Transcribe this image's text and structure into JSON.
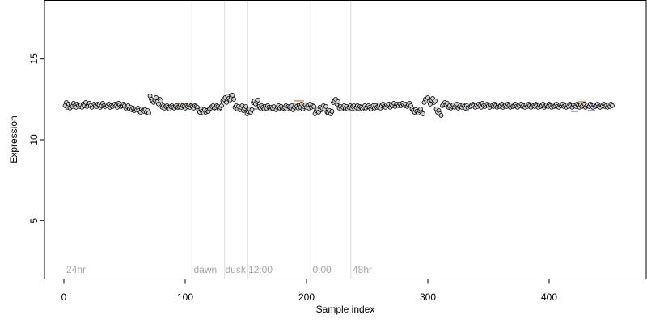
{
  "chart_data": {
    "type": "scatter",
    "title": "",
    "xlabel": "Sample index",
    "ylabel": "Expression",
    "xlim": [
      -16,
      480
    ],
    "ylim": [
      1.4,
      18.6
    ],
    "xticks": [
      0,
      100,
      200,
      300,
      400
    ],
    "yticks": [
      5,
      10,
      15
    ],
    "grid": false,
    "colors": {
      "point_fill": "#cfcfcf",
      "point_stroke": "#000000",
      "trend_below": "#8fa8d8",
      "trend_above": "#e6a66e",
      "separator": "#d9d9d9",
      "region_label": "#a6a6a6"
    },
    "regions": [
      {
        "label": "24hr",
        "x": 2,
        "line_x": null
      },
      {
        "label": "dawn",
        "x": 107,
        "line_x": 105.5
      },
      {
        "label": "dusk",
        "x": 133,
        "line_x": 132.5
      },
      {
        "label": "12:00",
        "x": 152,
        "line_x": 151.5
      },
      {
        "label": "0:00",
        "x": 205,
        "line_x": 203.5
      },
      {
        "label": "48hr",
        "x": 238,
        "line_x": 236.5
      }
    ],
    "series": [
      {
        "points_y": [
          12.1,
          12.3,
          12.0,
          12.2,
          11.95,
          12.15,
          12.05,
          12.25,
          12.1,
          12.0,
          12.2,
          12.1,
          12.05,
          12.15,
          12.0,
          12.2,
          12.1,
          12.3,
          12.05,
          12.15,
          12.25,
          12.1,
          12.0,
          12.15,
          12.2,
          12.1,
          12.05,
          12.2,
          12.15,
          12.0,
          12.1,
          12.25,
          12.1,
          12.05,
          12.15,
          12.1,
          12.2,
          12.0,
          12.1,
          12.05,
          12.15,
          12.2,
          12.1,
          12.0,
          12.25,
          12.15,
          12.05,
          12.1,
          12.2,
          12.1,
          11.95,
          12.05,
          12.1,
          11.9,
          12.0,
          11.85,
          11.95,
          11.8,
          11.9,
          11.85,
          11.95,
          11.8,
          11.7,
          11.9,
          11.8,
          11.75,
          11.85,
          11.7,
          11.8,
          11.65,
          12.7,
          12.5,
          12.4,
          12.3,
          12.45,
          12.6,
          12.35,
          12.2,
          12.5,
          12.4,
          12.0,
          12.1,
          11.95,
          12.05,
          12.1,
          12.0,
          11.9,
          12.05,
          12.1,
          12.0,
          11.95,
          12.05,
          12.1,
          12.0,
          12.05,
          12.15,
          12.0,
          12.1,
          12.05,
          11.95,
          12.1,
          12.05,
          12.15,
          12.0,
          12.1,
          12.05,
          11.95,
          12.1,
          12.05,
          12.0,
          11.8,
          11.7,
          11.9,
          11.75,
          11.65,
          11.85,
          11.7,
          11.8,
          11.75,
          11.9,
          11.95,
          12.05,
          12.1,
          11.95,
          12.0,
          12.1,
          12.05,
          11.9,
          12.0,
          12.1,
          12.4,
          12.5,
          12.6,
          12.3,
          12.7,
          12.55,
          12.45,
          12.65,
          12.75,
          12.5,
          12.0,
          12.1,
          11.9,
          12.05,
          11.85,
          12.0,
          12.1,
          11.8,
          11.95,
          12.05,
          11.6,
          11.75,
          11.9,
          11.7,
          11.85,
          12.3,
          12.4,
          12.2,
          12.35,
          12.45,
          12.05,
          11.95,
          12.1,
          12.0,
          11.9,
          12.05,
          11.95,
          12.1,
          12.0,
          11.9,
          12.0,
          11.95,
          12.05,
          11.9,
          11.85,
          12.0,
          12.1,
          11.95,
          12.05,
          11.9,
          11.95,
          12.0,
          12.1,
          11.9,
          12.05,
          12.0,
          11.95,
          12.1,
          11.85,
          12.0,
          12.15,
          12.05,
          11.95,
          12.1,
          12.0,
          12.2,
          11.9,
          12.05,
          12.15,
          12.0,
          12.1,
          11.95,
          12.2,
          12.0,
          12.1,
          12.05,
          11.6,
          11.8,
          11.9,
          11.7,
          12.0,
          11.85,
          11.95,
          12.1,
          11.9,
          12.05,
          11.7,
          11.65,
          11.8,
          11.6,
          11.75,
          12.3,
          12.4,
          12.5,
          12.2,
          12.35,
          11.95,
          12.05,
          11.9,
          12.0,
          12.1,
          11.95,
          12.05,
          11.9,
          12.0,
          12.1,
          11.95,
          12.05,
          12.1,
          11.9,
          12.0,
          12.1,
          11.95,
          12.05,
          12.0,
          11.9,
          12.0,
          12.1,
          11.95,
          12.05,
          12.1,
          12.0,
          11.9,
          12.05,
          12.1,
          11.95,
          12.1,
          12.0,
          12.05,
          12.15,
          11.95,
          12.1,
          12.2,
          12.05,
          12.0,
          12.15,
          12.1,
          12.2,
          12.0,
          12.15,
          12.1,
          12.25,
          12.05,
          12.15,
          12.2,
          12.1,
          12.2,
          12.1,
          12.25,
          12.15,
          12.1,
          12.2,
          12.05,
          12.15,
          12.25,
          12.1,
          11.9,
          11.8,
          11.7,
          11.85,
          11.75,
          11.65,
          11.8,
          11.9,
          11.7,
          11.6,
          12.3,
          12.5,
          12.4,
          12.6,
          12.35,
          12.2,
          12.45,
          12.55,
          12.3,
          12.4,
          11.9,
          11.7,
          11.8,
          11.6,
          11.5,
          12.1,
          12.2,
          12.3,
          12.15,
          12.25,
          12.0,
          12.1,
          11.95,
          12.05,
          12.15,
          12.0,
          12.1,
          12.2,
          11.95,
          12.05,
          12.1,
          12.0,
          12.15,
          12.05,
          11.95,
          12.1,
          12.0,
          12.15,
          12.05,
          12.1,
          12.2,
          12.1,
          12.0,
          12.15,
          12.05,
          12.2,
          12.1,
          12.0,
          12.25,
          12.1,
          12.05,
          12.15,
          12.2,
          12.1,
          12.0,
          12.15,
          12.1,
          12.05,
          12.2,
          12.1,
          12.0,
          12.15,
          12.05,
          12.1,
          12.2,
          12.0,
          12.1,
          12.15,
          12.05,
          12.2,
          12.1,
          12.0,
          12.15,
          12.05,
          12.1,
          12.2,
          12.05,
          12.0,
          12.15,
          12.1,
          12.2,
          12.05,
          12.1,
          12.0,
          12.15,
          12.05,
          12.2,
          12.1,
          12.0,
          12.15,
          12.1,
          12.05,
          12.2,
          12.1,
          12.0,
          12.15,
          12.05,
          12.1,
          12.2,
          12.0,
          12.1,
          12.15,
          12.05,
          12.2,
          12.1,
          12.0,
          12.15,
          12.05,
          12.1,
          12.2,
          12.05,
          12.0,
          12.15,
          12.1,
          12.2,
          12.05,
          12.1,
          12.0,
          12.15,
          12.05,
          12.2,
          12.1,
          12.0,
          12.15,
          12.1,
          12.05,
          12.2,
          12.1,
          12.0,
          12.15,
          12.05,
          12.1,
          12.2,
          12.0,
          12.1,
          12.15,
          12.05,
          12.2,
          12.1,
          12.0,
          12.15,
          12.05,
          12.1,
          12.2,
          12.05,
          12.0,
          12.15,
          12.1,
          12.2,
          12.05,
          12.1,
          12.0,
          12.15,
          12.05,
          12.2,
          12.1
        ]
      }
    ],
    "trend_segments": [
      {
        "from": 85,
        "to": 95,
        "y": 11.9,
        "dir": "below"
      },
      {
        "from": 97,
        "to": 104,
        "y": 12.25,
        "dir": "above"
      },
      {
        "from": 152,
        "to": 162,
        "y": 11.9,
        "dir": "below"
      },
      {
        "from": 190,
        "to": 198,
        "y": 12.4,
        "dir": "above"
      },
      {
        "from": 330,
        "to": 334,
        "y": 11.8,
        "dir": "below"
      },
      {
        "from": 418,
        "to": 424,
        "y": 11.75,
        "dir": "below"
      },
      {
        "from": 424,
        "to": 430,
        "y": 12.35,
        "dir": "above"
      },
      {
        "from": 432,
        "to": 438,
        "y": 11.8,
        "dir": "below"
      }
    ]
  }
}
